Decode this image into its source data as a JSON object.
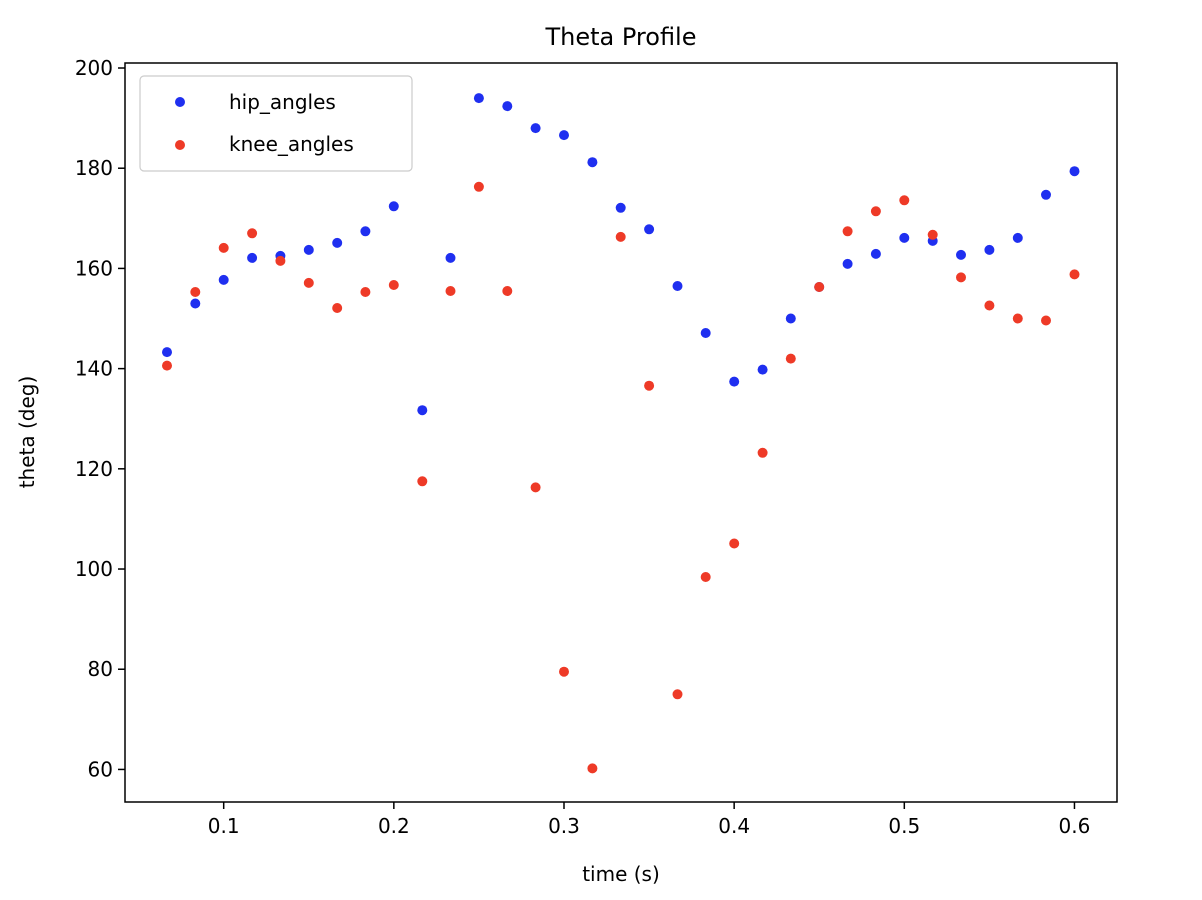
{
  "chart_data": {
    "type": "scatter",
    "title": "Theta Profile",
    "xlabel": "time (s)",
    "ylabel": "theta (deg)",
    "xlim": [
      0.042,
      0.625
    ],
    "ylim": [
      53.5,
      201
    ],
    "x_ticks": [
      0.1,
      0.2,
      0.3,
      0.4,
      0.5,
      0.6
    ],
    "x_tick_labels": [
      "0.1",
      "0.2",
      "0.3",
      "0.4",
      "0.5",
      "0.6"
    ],
    "y_ticks": [
      60,
      80,
      100,
      120,
      140,
      160,
      180,
      200
    ],
    "y_tick_labels": [
      "60",
      "80",
      "100",
      "120",
      "140",
      "160",
      "180",
      "200"
    ],
    "grid": false,
    "legend_position": "top-left",
    "x": [
      0.0667,
      0.0833,
      0.1,
      0.1167,
      0.1333,
      0.15,
      0.1667,
      0.1833,
      0.2,
      0.2167,
      0.2333,
      0.25,
      0.2667,
      0.2833,
      0.3,
      0.3167,
      0.3333,
      0.35,
      0.3667,
      0.3833,
      0.4,
      0.4167,
      0.4333,
      0.45,
      0.4667,
      0.4833,
      0.5,
      0.5167,
      0.5333,
      0.55,
      0.5667,
      0.5833,
      0.6
    ],
    "series": [
      {
        "name": "hip_angles",
        "color": "#1f2ff0",
        "values": [
          143.3,
          153.0,
          157.7,
          162.1,
          162.5,
          163.7,
          165.1,
          167.4,
          172.4,
          131.7,
          162.1,
          194.0,
          192.4,
          188.0,
          186.6,
          181.2,
          172.1,
          167.8,
          156.5,
          147.1,
          137.4,
          139.8,
          150.0,
          156.3,
          160.9,
          162.9,
          166.1,
          165.5,
          162.7,
          163.7,
          166.1,
          174.7,
          179.4
        ]
      },
      {
        "name": "knee_angles",
        "color": "#ee3a27",
        "values": [
          140.6,
          155.3,
          164.1,
          167.0,
          161.5,
          157.1,
          152.1,
          155.3,
          156.7,
          117.5,
          155.5,
          176.3,
          155.5,
          116.3,
          79.5,
          60.2,
          166.3,
          136.6,
          75.0,
          98.4,
          105.1,
          123.2,
          142.0,
          156.3,
          167.4,
          171.4,
          173.6,
          166.7,
          158.2,
          152.6,
          150.0,
          149.6,
          158.8
        ]
      }
    ]
  }
}
